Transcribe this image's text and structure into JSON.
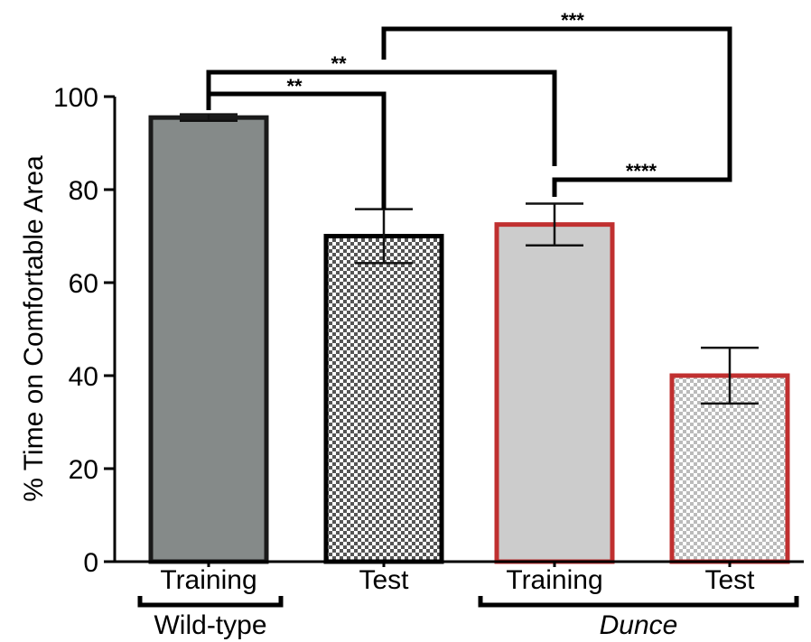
{
  "chart_data": {
    "type": "bar",
    "ylabel": "% Time on Comfortable Area",
    "ylim": [
      0,
      100
    ],
    "yticks": [
      "0",
      "20",
      "40",
      "60",
      "80",
      "100"
    ],
    "categories": [
      "Training",
      "Test",
      "Training",
      "Test"
    ],
    "values": [
      95.5,
      70,
      72.5,
      40
    ],
    "errors": [
      0.7,
      5.8,
      4.5,
      6.0
    ],
    "groups": [
      {
        "label": "Wild-type",
        "italic": false,
        "members": [
          0,
          1
        ]
      },
      {
        "label": "Dunce",
        "italic": true,
        "members": [
          2,
          3
        ]
      }
    ],
    "bar_styles": [
      {
        "fill": "#858a89",
        "edge": "#1a1a1a",
        "pattern": "solid"
      },
      {
        "fill": "#555555",
        "edge": "#000000",
        "pattern": "checker-dark"
      },
      {
        "fill": "#cccccc",
        "edge": "#c03030",
        "pattern": "solid"
      },
      {
        "fill": "#bbbbbb",
        "edge": "#c03030",
        "pattern": "checker-light"
      }
    ],
    "significance": [
      {
        "from": 0,
        "to": 1,
        "label": "**"
      },
      {
        "from": 0,
        "to": 2,
        "label": "**"
      },
      {
        "from": 1,
        "to": 3,
        "label": "***"
      },
      {
        "from": 2,
        "to": 3,
        "label": "****"
      }
    ]
  }
}
